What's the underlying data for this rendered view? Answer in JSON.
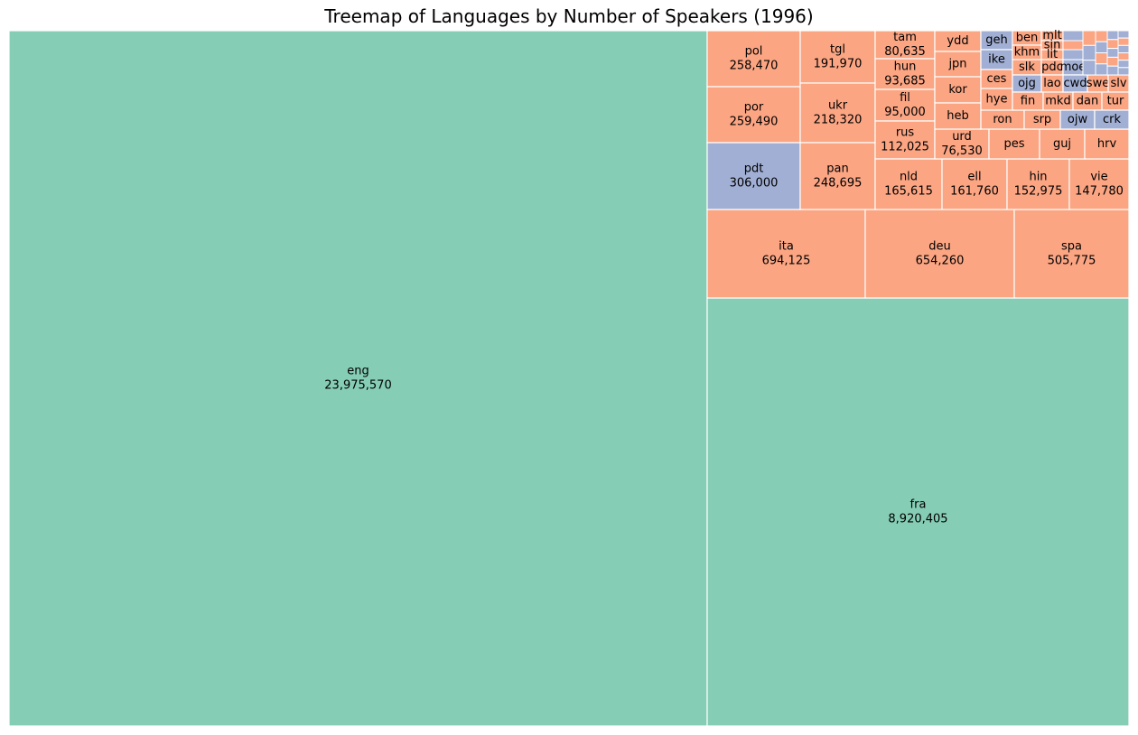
{
  "chart_data": {
    "type": "treemap",
    "title": "Treemap of Languages by Number of Speakers (1996)",
    "palette": {
      "green": "#86cdb5",
      "orange": "#fba583",
      "blue": "#a1afd4",
      "border": "#ffffff"
    },
    "cells": [
      {
        "label": "eng",
        "value": "23,975,570",
        "color": "green"
      },
      {
        "label": "fra",
        "value": "8,920,405",
        "color": "green"
      },
      {
        "label": "ita",
        "value": "694,125",
        "color": "orange"
      },
      {
        "label": "deu",
        "value": "654,260",
        "color": "orange"
      },
      {
        "label": "spa",
        "value": "505,775",
        "color": "orange"
      },
      {
        "label": "pol",
        "value": "258,470",
        "color": "orange"
      },
      {
        "label": "por",
        "value": "259,490",
        "color": "orange"
      },
      {
        "label": "pdt",
        "value": "306,000",
        "color": "blue"
      },
      {
        "label": "tgl",
        "value": "191,970",
        "color": "orange"
      },
      {
        "label": "ukr",
        "value": "218,320",
        "color": "orange"
      },
      {
        "label": "pan",
        "value": "248,695",
        "color": "orange"
      },
      {
        "label": "tam",
        "value": "80,635",
        "color": "orange"
      },
      {
        "label": "hun",
        "value": "93,685",
        "color": "orange"
      },
      {
        "label": "fil",
        "value": "95,000",
        "color": "orange"
      },
      {
        "label": "rus",
        "value": "112,025",
        "color": "orange"
      },
      {
        "label": "nld",
        "value": "165,615",
        "color": "orange"
      },
      {
        "label": "ell",
        "value": "161,760",
        "color": "orange"
      },
      {
        "label": "hin",
        "value": "152,975",
        "color": "orange"
      },
      {
        "label": "vie",
        "value": "147,780",
        "color": "orange"
      },
      {
        "label": "urd",
        "value": "76,530",
        "color": "orange"
      },
      {
        "label": "pes",
        "value": null,
        "color": "orange"
      },
      {
        "label": "guj",
        "value": null,
        "color": "orange"
      },
      {
        "label": "hrv",
        "value": null,
        "color": "orange"
      },
      {
        "label": "ydd",
        "value": null,
        "color": "orange"
      },
      {
        "label": "jpn",
        "value": null,
        "color": "orange"
      },
      {
        "label": "kor",
        "value": null,
        "color": "orange"
      },
      {
        "label": "heb",
        "value": null,
        "color": "orange"
      },
      {
        "label": "geh",
        "value": null,
        "color": "blue"
      },
      {
        "label": "ike",
        "value": null,
        "color": "blue"
      },
      {
        "label": "ces",
        "value": null,
        "color": "orange"
      },
      {
        "label": "hye",
        "value": null,
        "color": "orange"
      },
      {
        "label": "ron",
        "value": null,
        "color": "orange"
      },
      {
        "label": "ben",
        "value": null,
        "color": "orange"
      },
      {
        "label": "khm",
        "value": null,
        "color": "orange"
      },
      {
        "label": "slk",
        "value": null,
        "color": "orange"
      },
      {
        "label": "ojg",
        "value": null,
        "color": "blue"
      },
      {
        "label": "fin",
        "value": null,
        "color": "orange"
      },
      {
        "label": "srp",
        "value": null,
        "color": "orange"
      },
      {
        "label": "mlt",
        "value": null,
        "color": "orange"
      },
      {
        "label": "sin",
        "value": null,
        "color": "orange"
      },
      {
        "label": "lit",
        "value": null,
        "color": "orange"
      },
      {
        "label": "pdc",
        "value": null,
        "color": "orange"
      },
      {
        "label": "lao",
        "value": null,
        "color": "orange"
      },
      {
        "label": "mkd",
        "value": null,
        "color": "orange"
      },
      {
        "label": "moe",
        "value": null,
        "color": "blue"
      },
      {
        "label": "cwd",
        "value": null,
        "color": "blue"
      },
      {
        "label": "swe",
        "value": null,
        "color": "orange"
      },
      {
        "label": "slv",
        "value": null,
        "color": "orange"
      },
      {
        "label": "dan",
        "value": null,
        "color": "orange"
      },
      {
        "label": "tur",
        "value": null,
        "color": "orange"
      },
      {
        "label": "ojw",
        "value": null,
        "color": "blue"
      },
      {
        "label": "crk",
        "value": null,
        "color": "blue"
      }
    ]
  }
}
